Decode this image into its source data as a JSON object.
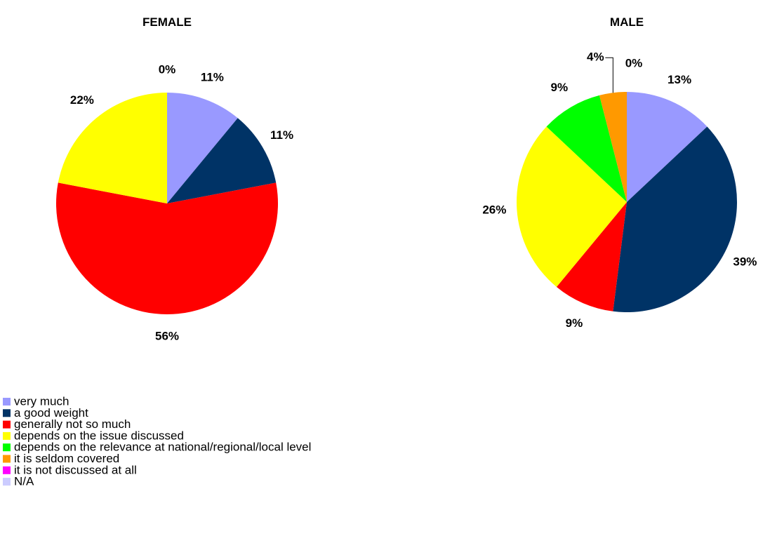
{
  "chart_data": [
    {
      "type": "pie",
      "title": "FEMALE",
      "categories": [
        "very much",
        "a good weight",
        "generally not so much",
        "depends on the issue discussed",
        "depends on the relevance at national/regional/local level",
        "it is seldom covered",
        "it is not discussed at all",
        "N/A"
      ],
      "colors": [
        "#9999ff",
        "#003366",
        "#ff0000",
        "#ffff00",
        "#00ff00",
        "#ff9900",
        "#ff00ff",
        "#ccccff"
      ],
      "values": [
        11,
        11,
        56,
        22,
        0,
        null,
        null,
        null
      ],
      "value_labels": [
        "11%",
        "11%",
        "56%",
        "22%",
        "0%",
        null,
        null,
        null
      ]
    },
    {
      "type": "pie",
      "title": "MALE",
      "categories": [
        "very much",
        "a good weight",
        "generally not so much",
        "depends on the issue discussed",
        "depends on the relevance at national/regional/local level",
        "it is seldom covered",
        "it is not discussed at all",
        "N/A"
      ],
      "colors": [
        "#9999ff",
        "#003366",
        "#ff0000",
        "#ffff00",
        "#00ff00",
        "#ff9900",
        "#ff00ff",
        "#ccccff"
      ],
      "values": [
        13,
        39,
        9,
        26,
        9,
        4,
        0,
        null
      ],
      "value_labels": [
        "13%",
        "39%",
        "9%",
        "26%",
        "9%",
        "4%",
        "0%",
        null
      ]
    }
  ]
}
